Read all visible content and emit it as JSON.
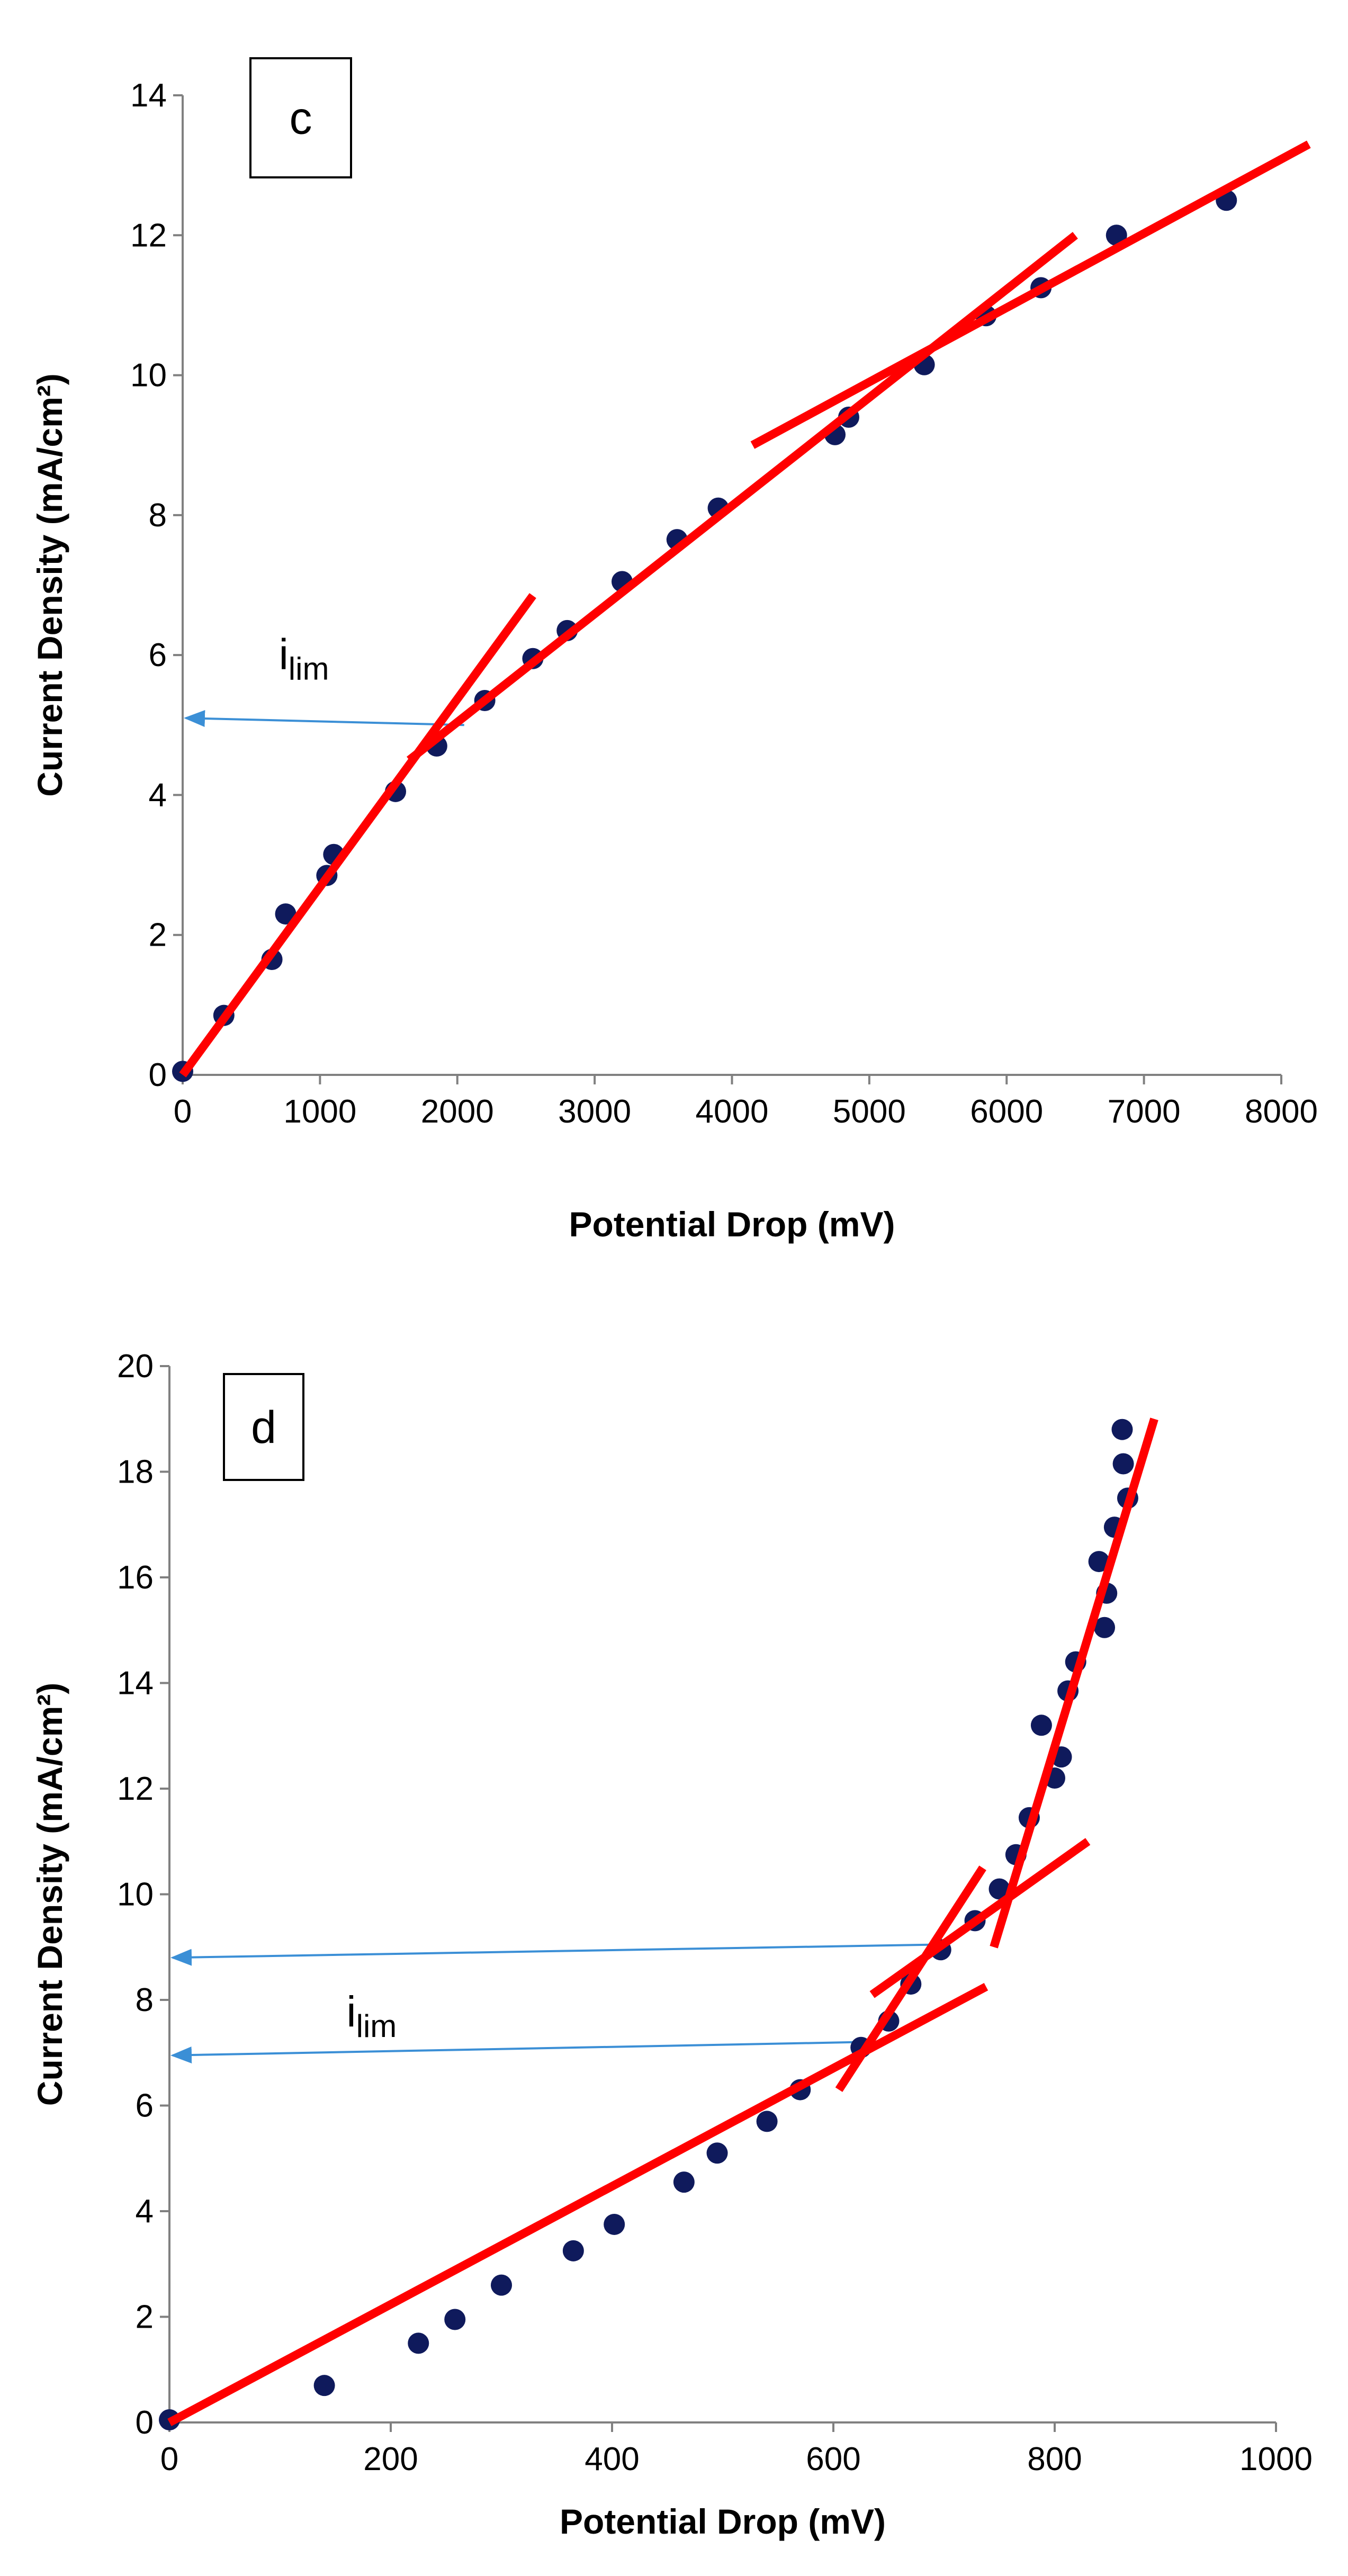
{
  "colors": {
    "points": "#0f1a5c",
    "fit_lines": "#ff0000",
    "arrows": "#3b8fd6",
    "axes": "#808080"
  },
  "chart_data": [
    {
      "panel": "c",
      "type": "scatter",
      "xlabel": "Potential Drop (mV)",
      "ylabel": "Current Density (mA/cm²)",
      "xlim": [
        0,
        8000
      ],
      "ylim": [
        0,
        14
      ],
      "xticks": [
        0,
        1000,
        2000,
        3000,
        4000,
        5000,
        6000,
        7000,
        8000
      ],
      "yticks": [
        0,
        2,
        4,
        6,
        8,
        10,
        12,
        14
      ],
      "grid": false,
      "points": [
        {
          "x": 0,
          "y": 0.05
        },
        {
          "x": 300,
          "y": 0.85
        },
        {
          "x": 650,
          "y": 1.65
        },
        {
          "x": 750,
          "y": 2.3
        },
        {
          "x": 1050,
          "y": 2.85
        },
        {
          "x": 1100,
          "y": 3.15
        },
        {
          "x": 1550,
          "y": 4.05
        },
        {
          "x": 1850,
          "y": 4.7
        },
        {
          "x": 2200,
          "y": 5.35
        },
        {
          "x": 2550,
          "y": 5.95
        },
        {
          "x": 2800,
          "y": 6.35
        },
        {
          "x": 3200,
          "y": 7.05
        },
        {
          "x": 3600,
          "y": 7.65
        },
        {
          "x": 3900,
          "y": 8.1
        },
        {
          "x": 4750,
          "y": 9.15
        },
        {
          "x": 4850,
          "y": 9.4
        },
        {
          "x": 5400,
          "y": 10.15
        },
        {
          "x": 5850,
          "y": 10.85
        },
        {
          "x": 6250,
          "y": 11.25
        },
        {
          "x": 6800,
          "y": 12.0
        },
        {
          "x": 7600,
          "y": 12.5
        }
      ],
      "fit_lines": [
        {
          "x1": 0,
          "y1": 0,
          "x2": 2550,
          "y2": 6.85
        },
        {
          "x1": 1650,
          "y1": 4.5,
          "x2": 6500,
          "y2": 12.0
        },
        {
          "x1": 4150,
          "y1": 9.0,
          "x2": 8200,
          "y2": 13.3
        }
      ],
      "arrows": [
        {
          "from_x": 2050,
          "from_y": 5.0,
          "to_x": 0,
          "to_y": 5.1
        }
      ],
      "annotation": {
        "text": "i",
        "subscript": "lim",
        "x": 700,
        "y": 5.8
      }
    },
    {
      "panel": "d",
      "type": "scatter",
      "xlabel": "Potential Drop (mV)",
      "ylabel": "Current Density (mA/cm²)",
      "xlim": [
        0,
        1000
      ],
      "ylim": [
        0,
        20
      ],
      "xticks": [
        0,
        200,
        400,
        600,
        800,
        1000
      ],
      "yticks": [
        0,
        2,
        4,
        6,
        8,
        10,
        12,
        14,
        16,
        18,
        20
      ],
      "grid": false,
      "points": [
        {
          "x": 0,
          "y": 0.05
        },
        {
          "x": 140,
          "y": 0.7
        },
        {
          "x": 225,
          "y": 1.5
        },
        {
          "x": 258,
          "y": 1.95
        },
        {
          "x": 300,
          "y": 2.6
        },
        {
          "x": 365,
          "y": 3.25
        },
        {
          "x": 402,
          "y": 3.75
        },
        {
          "x": 465,
          "y": 4.55
        },
        {
          "x": 495,
          "y": 5.1
        },
        {
          "x": 540,
          "y": 5.7
        },
        {
          "x": 570,
          "y": 6.3
        },
        {
          "x": 625,
          "y": 7.1
        },
        {
          "x": 650,
          "y": 7.6
        },
        {
          "x": 670,
          "y": 8.3
        },
        {
          "x": 697,
          "y": 8.95
        },
        {
          "x": 728,
          "y": 9.5
        },
        {
          "x": 750,
          "y": 10.1
        },
        {
          "x": 765,
          "y": 10.75
        },
        {
          "x": 777,
          "y": 11.45
        },
        {
          "x": 788,
          "y": 13.2
        },
        {
          "x": 800,
          "y": 12.2
        },
        {
          "x": 806,
          "y": 12.6
        },
        {
          "x": 812,
          "y": 13.85
        },
        {
          "x": 819,
          "y": 14.4
        },
        {
          "x": 840,
          "y": 16.3
        },
        {
          "x": 845,
          "y": 15.05
        },
        {
          "x": 847,
          "y": 15.7
        },
        {
          "x": 854,
          "y": 16.95
        },
        {
          "x": 861,
          "y": 18.8
        },
        {
          "x": 862,
          "y": 18.15
        },
        {
          "x": 866,
          "y": 17.5
        }
      ],
      "fit_lines": [
        {
          "x1": 0,
          "y1": 0,
          "x2": 738,
          "y2": 8.25
        },
        {
          "x1": 605,
          "y1": 6.3,
          "x2": 735,
          "y2": 10.5
        },
        {
          "x1": 635,
          "y1": 8.1,
          "x2": 830,
          "y2": 11.0
        },
        {
          "x1": 745,
          "y1": 9.0,
          "x2": 890,
          "y2": 19.0
        }
      ],
      "arrows": [
        {
          "from_x": 700,
          "from_y": 9.05,
          "to_x": 0,
          "to_y": 8.8
        },
        {
          "from_x": 620,
          "from_y": 7.2,
          "to_x": 0,
          "to_y": 6.95
        }
      ],
      "annotation": {
        "text": "i",
        "subscript": "lim",
        "x": 160,
        "y": 7.5
      }
    }
  ]
}
